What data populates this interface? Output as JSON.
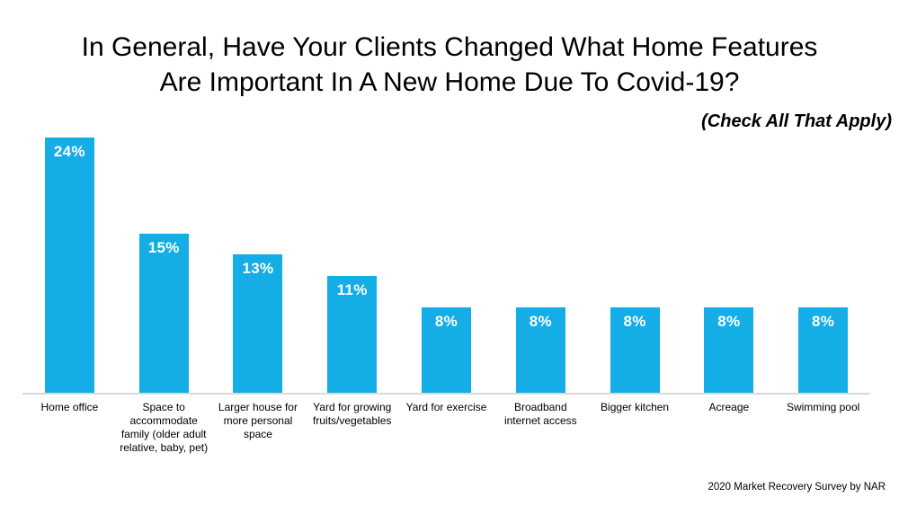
{
  "chart_data": {
    "type": "bar",
    "title": "In General, Have Your Clients Changed What Home Features Are Important In A New Home Due To Covid-19?",
    "title_lines": [
      "In General, Have Your Clients Changed What Home Features",
      "Are Important In A New Home Due To Covid-19?"
    ],
    "subtitle": "(Check All That Apply)",
    "categories": [
      "Home office",
      "Space to accommodate family (older adult relative, baby, pet)",
      "Larger house for more personal space",
      "Yard for growing fruits/vegetables",
      "Yard for exercise",
      "Broadband internet access",
      "Bigger kitchen",
      "Acreage",
      "Swimming pool"
    ],
    "values": [
      24,
      15,
      13,
      11,
      8,
      8,
      8,
      8,
      8
    ],
    "value_labels": [
      "24%",
      "15%",
      "13%",
      "11%",
      "8%",
      "8%",
      "8%",
      "8%",
      "8%"
    ],
    "unit": "%",
    "ylim": [
      0,
      24
    ],
    "grid": false,
    "legend": "none",
    "value_label_position": "inside-top",
    "bar_color": "#14ADE6",
    "value_label_color": "#FFFFFF",
    "axis_line_color": "#D9D9D9",
    "source": "2020 Market Recovery Survey by NAR"
  }
}
